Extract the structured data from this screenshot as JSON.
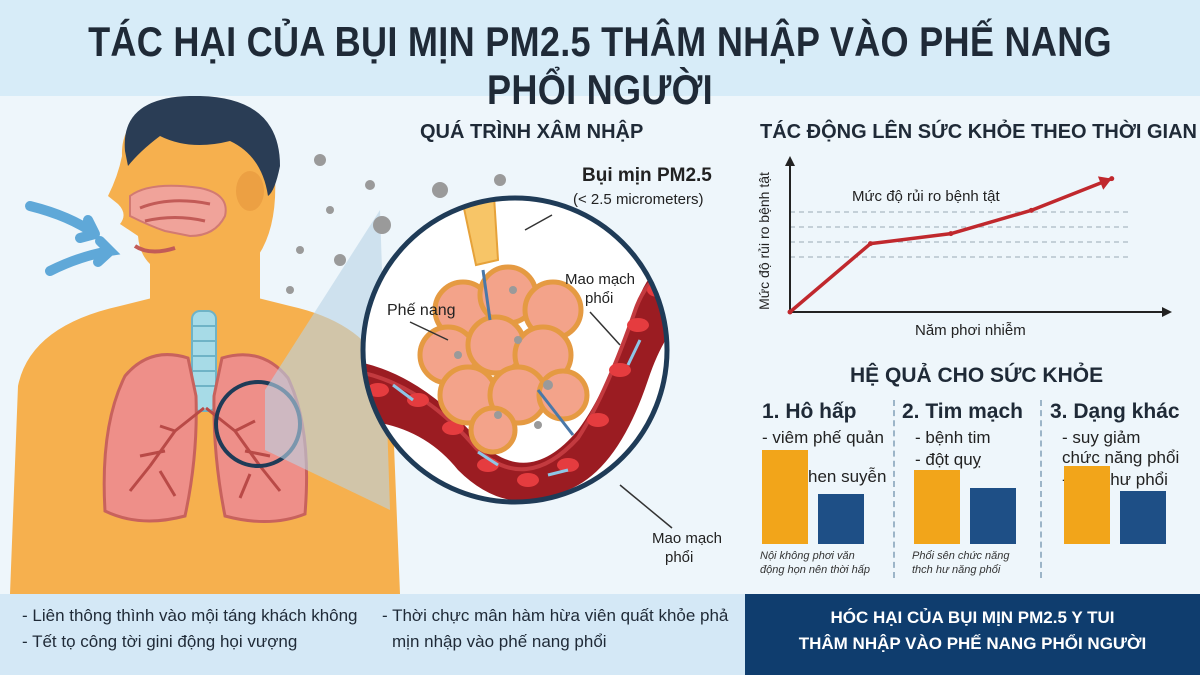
{
  "title": "TÁC HẠI CỦA BỤI MỊN PM2.5 THÂM NHẬP VÀO PHẾ NANG PHỔI NGƯỜI",
  "process": {
    "heading": "QUÁ TRÌNH XÂM NHẬP",
    "pm_label": "Bụi mịn PM2.5",
    "pm_size": "(< 2.5 micrometers)",
    "alveolus": "Phế nang",
    "capillary_top_1": "Mao mạch",
    "capillary_top_2": "phổi",
    "capillary_bottom_1": "Mao mạch",
    "capillary_bottom_2": "phổi"
  },
  "timeline": {
    "heading": "TÁC ĐỘNG LÊN SỨC KHỎE THEO THỜI GIAN",
    "ylabel": "Mức độ rủi ro bệnh tật",
    "xlabel": "Năm phơi nhiễm",
    "series_label": "Mức độ rủi ro bệnh tật"
  },
  "chart_data": {
    "type": "line",
    "title": "TÁC ĐỘNG LÊN SỨC KHỎE THEO THỜI GIAN",
    "xlabel": "Năm phơi nhiễm",
    "ylabel": "Mức độ rủi ro bệnh tật",
    "x": [
      0,
      1,
      2,
      3,
      4
    ],
    "series": [
      {
        "name": "Mức độ rủi ro bệnh tật",
        "values": [
          0,
          4.1,
          4.7,
          6.1,
          8.0
        ]
      }
    ],
    "ylim": [
      0,
      9
    ],
    "xlim": [
      0,
      4.6
    ],
    "grid": true,
    "colors": {
      "line": "#c0282d"
    }
  },
  "consequences": {
    "heading": "HỆ QUẢ CHO SỨC KHỎE",
    "columns": [
      {
        "title": "1. Hô hấp",
        "items": [
          "- viêm phế quản",
          "hen suyễn"
        ],
        "note_1": "Nội không phơi văn",
        "note_2": "động họn nên thời hấp",
        "bars": [
          0.78,
          0.42
        ]
      },
      {
        "title": "2. Tim mạch",
        "items": [
          "- bệnh tim",
          "- đột quỵ"
        ],
        "note_1": "Phổi sên chức năng",
        "note_2": "thch hư năng phổi",
        "bars": [
          0.62,
          0.47
        ]
      },
      {
        "title": "3. Dạng khác",
        "items": [
          "- suy giảm",
          "chức năng phổi",
          "- ung thư phổi"
        ],
        "bars": [
          0.65,
          0.44
        ]
      }
    ],
    "colors": {
      "orange": "#f2a51a",
      "navy": "#1e4f86"
    }
  },
  "footer": {
    "left": [
      "- Liên thông thình vào mội táng khách không",
      "- Tết tọ công tời gini động họi vượng"
    ],
    "mid": [
      "- Thời chực mân hàm hừa viên quất khỏe phả",
      "mịn nhập vào phế nang phổi"
    ],
    "right": [
      "HÓC HẠI CỦA BỤI MỊN PM2.5 Y TUI",
      "THÂM NHẬP VÀO PHẾ NANG PHỔI NGƯỜI"
    ]
  }
}
